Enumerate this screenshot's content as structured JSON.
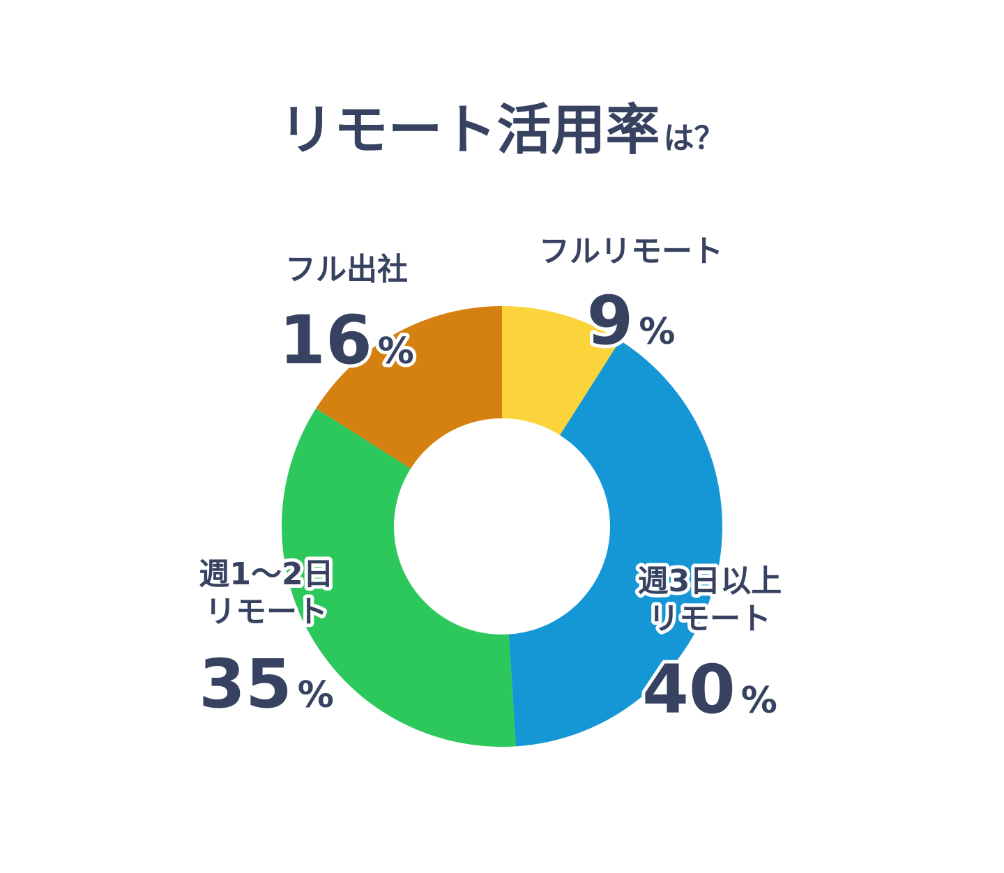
{
  "chart_data": {
    "type": "pie",
    "title": "リモート活用率",
    "title_suffix": "は？",
    "donut": true,
    "unit": "%",
    "slices": [
      {
        "label": "フルリモート",
        "label_lines": [
          "フルリモート"
        ],
        "value": 9,
        "value_text": "9",
        "color": "#fbd33a"
      },
      {
        "label": "週3日以上リモート",
        "label_lines": [
          "週3日以上",
          "リモート"
        ],
        "value": 40,
        "value_text": "40",
        "color": "#1597d5"
      },
      {
        "label": "週1〜2日リモート",
        "label_lines": [
          "週1〜2日",
          "リモート"
        ],
        "value": 35,
        "value_text": "35",
        "color": "#2dc85b"
      },
      {
        "label": "フル出社",
        "label_lines": [
          "フル出社"
        ],
        "value": 16,
        "value_text": "16",
        "color": "#d58112"
      }
    ]
  },
  "colors": {
    "text": "#364260",
    "background": "#ffffff"
  }
}
